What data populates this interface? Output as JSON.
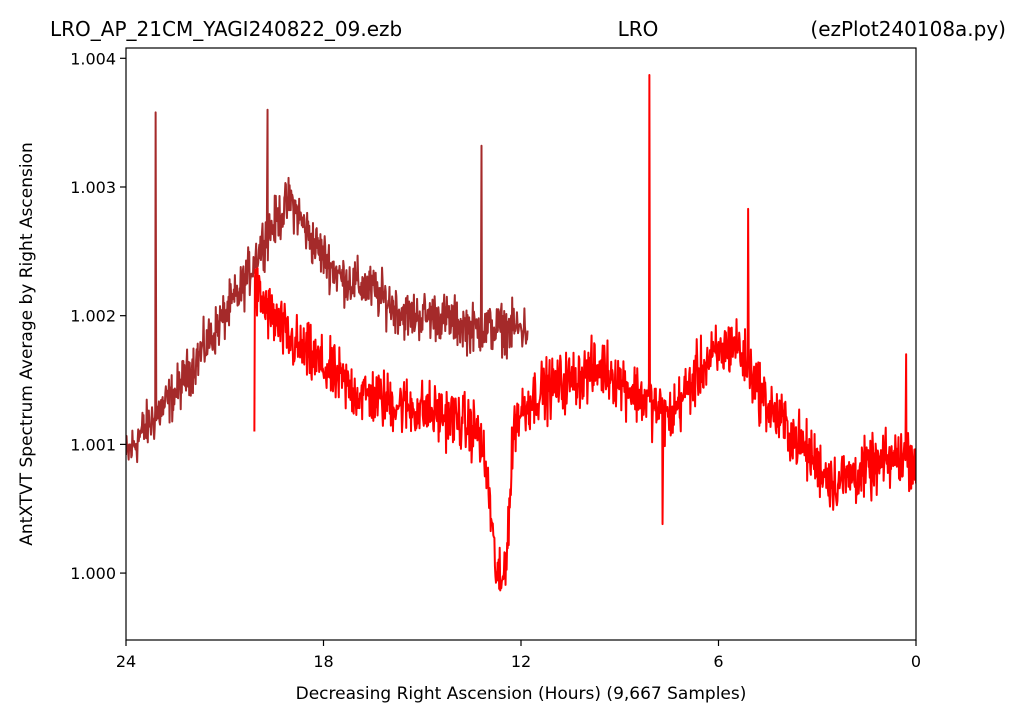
{
  "chart_data": {
    "type": "line",
    "title_parts": {
      "left": "LRO_AP_21CM_YAGI240822_09.ezb",
      "center": "LRO",
      "right": "(ezPlot240108a.py)"
    },
    "xlabel": "Decreasing Right Ascension (Hours) (9,667 Samples)",
    "ylabel": "AntXTVT Spectrum Average by Right Ascension",
    "xlim": [
      24,
      0
    ],
    "ylim": [
      0.99948,
      1.00408
    ],
    "x_ticks": [
      "24",
      "18",
      "12",
      "6",
      "0"
    ],
    "y_ticks": [
      "1.000",
      "1.001",
      "1.002",
      "1.003",
      "1.004"
    ],
    "grid": false,
    "series": [
      {
        "color": "#a52a2a",
        "x_range": [
          24,
          11.8
        ],
        "trend": [
          [
            24,
            1.0009
          ],
          [
            23.5,
            1.0011
          ],
          [
            22.5,
            1.0014
          ],
          [
            21.5,
            1.0018
          ],
          [
            20.5,
            1.0022
          ],
          [
            19.8,
            1.0026
          ],
          [
            19,
            1.0029
          ],
          [
            18.4,
            1.0026
          ],
          [
            17.5,
            1.0023
          ],
          [
            16.5,
            1.0022
          ],
          [
            15.5,
            1.002
          ],
          [
            14.5,
            1.002
          ],
          [
            13.5,
            1.0019
          ],
          [
            12.5,
            1.0019
          ],
          [
            11.8,
            1.0019
          ]
        ],
        "noise": 0.00028,
        "spikes": [
          [
            23.1,
            1.00358
          ],
          [
            19.7,
            1.0036
          ],
          [
            13.2,
            1.00332
          ]
        ]
      },
      {
        "color": "#ff0000",
        "x_range": [
          20.1,
          0
        ],
        "trend": [
          [
            20.1,
            1.0022
          ],
          [
            19.6,
            1.002
          ],
          [
            19,
            1.0018
          ],
          [
            18,
            1.0016
          ],
          [
            17,
            1.0014
          ],
          [
            15.5,
            1.0013
          ],
          [
            14,
            1.0012
          ],
          [
            13.3,
            1.0011
          ],
          [
            13,
            1.0007
          ],
          [
            12.8,
            1.0001
          ],
          [
            12.6,
            0.99985
          ],
          [
            12.4,
            1.0003
          ],
          [
            12.2,
            1.0012
          ],
          [
            11.5,
            1.0014
          ],
          [
            10.5,
            1.0015
          ],
          [
            9.5,
            1.0016
          ],
          [
            8.5,
            1.0014
          ],
          [
            7.5,
            1.0012
          ],
          [
            6.5,
            1.0016
          ],
          [
            5.5,
            1.0018
          ],
          [
            4.5,
            1.0013
          ],
          [
            3.5,
            1.001
          ],
          [
            2.5,
            1.0007
          ],
          [
            1.5,
            1.0008
          ],
          [
            0.5,
            1.0009
          ],
          [
            0,
            1.0009
          ]
        ],
        "noise": 0.00034,
        "spikes": [
          [
            20.1,
            1.0011
          ],
          [
            8.1,
            1.00387
          ],
          [
            7.7,
            1.00038
          ],
          [
            5.1,
            1.00283
          ],
          [
            0.3,
            1.0017
          ]
        ]
      }
    ]
  }
}
